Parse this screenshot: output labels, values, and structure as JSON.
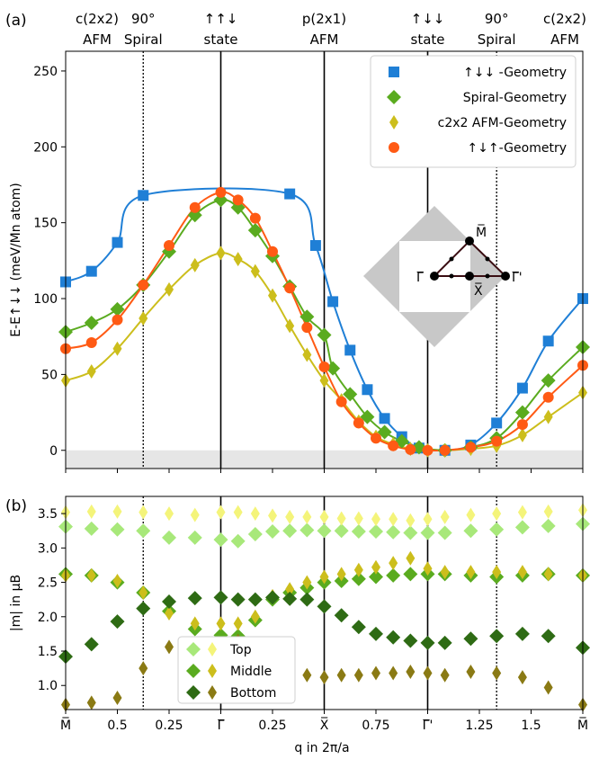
{
  "chart_data": [
    {
      "type": "line",
      "panel_label": "(a)",
      "ylabel": "E-E↑↓↓ (meV/Mn atom)",
      "ylim": [
        -12,
        263
      ],
      "yticks": [
        "0",
        "50",
        "100",
        "150",
        "200",
        "250"
      ],
      "xticks": [
        "M̅",
        "0.5",
        "0.25",
        "Γ̅",
        "0.25",
        "X̅",
        "0.75",
        "Γ̅'",
        "1.25",
        "1.5",
        "M̅"
      ],
      "shaded_band": [
        -12,
        0
      ],
      "top_labels": [
        {
          "line1": "c(2x2)",
          "line2": "AFM"
        },
        {
          "line1": "90°",
          "line2": "Spiral"
        },
        {
          "line1": "↑↑↓",
          "line2": "state"
        },
        {
          "line1": "p(2x1)",
          "line2": "AFM"
        },
        {
          "line1": "↑↓↓",
          "line2": "state"
        },
        {
          "line1": "90°",
          "line2": "Spiral"
        },
        {
          "line1": "c(2x2)",
          "line2": "AFM"
        }
      ],
      "legend_position": "top-right",
      "series": [
        {
          "name": "↑↓↓ -Geometry",
          "marker": "square",
          "color": "#1f7fd6",
          "x": [
            0,
            0.3,
            0.6,
            0.9,
            2.6,
            2.9,
            3.1,
            3.3,
            3.5,
            3.7,
            3.9,
            4.1,
            4.4,
            4.7,
            5.0,
            5.3,
            5.6,
            6.0
          ],
          "y": [
            111,
            118,
            137,
            168,
            169,
            135,
            98,
            66,
            40,
            21,
            9,
            1.5,
            0,
            3.5,
            18,
            41,
            72,
            100
          ]
        },
        {
          "name": "Spiral-Geometry",
          "marker": "diamond",
          "color": "#5aab1f",
          "x": [
            0,
            0.3,
            0.6,
            0.9,
            1.2,
            1.5,
            1.8,
            2.0,
            2.2,
            2.4,
            2.6,
            2.8,
            3.0,
            3.1,
            3.3,
            3.5,
            3.7,
            3.9,
            4.1,
            4.4,
            4.7,
            5.0,
            5.3,
            5.6,
            6.0
          ],
          "y": [
            78,
            84,
            93,
            109,
            131,
            155,
            165,
            160,
            145,
            128,
            108,
            88,
            76,
            54,
            37,
            22,
            12,
            6,
            2,
            0,
            2,
            8,
            25,
            46,
            68
          ]
        },
        {
          "name": "c2x2 AFM-Geometry",
          "marker": "thin-diamond",
          "color": "#ccbe1c",
          "x": [
            0,
            0.3,
            0.6,
            0.9,
            1.2,
            1.5,
            1.8,
            2.0,
            2.2,
            2.4,
            2.6,
            2.8,
            3.0,
            3.2,
            3.4,
            3.6,
            3.8,
            4.0,
            4.2,
            4.4,
            4.7,
            5.0,
            5.3,
            5.6,
            6.0
          ],
          "y": [
            46,
            52,
            67,
            87,
            106,
            122,
            130,
            126,
            118,
            102,
            82,
            63,
            46,
            33,
            19,
            9,
            4,
            1,
            0,
            0,
            1,
            3,
            10,
            22,
            38
          ]
        },
        {
          "name": "↑↓↑-Geometry",
          "marker": "circle",
          "color": "#ff5a14",
          "x": [
            0,
            0.3,
            0.6,
            0.9,
            1.2,
            1.5,
            1.8,
            2.0,
            2.2,
            2.4,
            2.6,
            2.8,
            3.0,
            3.2,
            3.4,
            3.6,
            3.8,
            4.0,
            4.2,
            4.4,
            4.7,
            5.0,
            5.3,
            5.6,
            6.0
          ],
          "y": [
            67,
            71,
            86,
            109,
            135,
            160,
            170,
            165,
            153,
            131,
            107,
            81,
            55,
            32,
            18,
            8,
            3,
            0.5,
            0,
            0,
            2,
            6,
            17,
            35,
            56
          ]
        }
      ]
    },
    {
      "type": "scatter",
      "panel_label": "(b)",
      "ylabel": "|m| in μB",
      "xlabel": "q in 2π/a",
      "ylim": [
        0.65,
        3.75
      ],
      "yticks": [
        "1.0",
        "1.5",
        "2.0",
        "2.5",
        "3.0",
        "3.5"
      ],
      "xticks": [
        "M̅",
        "0.5",
        "0.25",
        "Γ̅",
        "0.25",
        "X̅",
        "0.75",
        "Γ̅'",
        "1.25",
        "1.5",
        "M̅"
      ],
      "legend_position": "bottom-left",
      "legend": [
        "Top",
        "Middle",
        "Bottom"
      ],
      "series": [
        {
          "name": "Top",
          "kind": "AFM",
          "colors": [
            "#a8e87a",
            "#f4f47a"
          ],
          "x": [
            0,
            0.3,
            0.6,
            0.9,
            1.2,
            1.5,
            1.8,
            2.0,
            2.2,
            2.4,
            2.6,
            2.8,
            3.0,
            3.2,
            3.4,
            3.6,
            3.8,
            4.0,
            4.2,
            4.4,
            4.7,
            5.0,
            5.3,
            5.6,
            6.0
          ],
          "y": [
            3.31,
            3.28,
            3.27,
            3.25,
            3.15,
            3.15,
            3.12,
            3.1,
            3.2,
            3.24,
            3.25,
            3.26,
            3.25,
            3.25,
            3.24,
            3.24,
            3.23,
            3.22,
            3.22,
            3.22,
            3.25,
            3.27,
            3.3,
            3.32,
            3.35
          ],
          "y2": [
            3.52,
            3.53,
            3.53,
            3.52,
            3.5,
            3.48,
            3.52,
            3.52,
            3.5,
            3.47,
            3.45,
            3.45,
            3.45,
            3.43,
            3.43,
            3.42,
            3.42,
            3.4,
            3.42,
            3.45,
            3.48,
            3.5,
            3.52,
            3.53,
            3.55
          ]
        },
        {
          "name": "Middle",
          "kind": "AFM",
          "colors": [
            "#5aab1f",
            "#ccbe1c"
          ],
          "x": [
            0,
            0.3,
            0.6,
            0.9,
            1.2,
            1.5,
            1.8,
            2.0,
            2.2,
            2.4,
            2.6,
            2.8,
            3.0,
            3.2,
            3.4,
            3.6,
            3.8,
            4.0,
            4.2,
            4.4,
            4.7,
            5.0,
            5.3,
            5.6,
            6.0
          ],
          "y": [
            2.62,
            2.6,
            2.5,
            2.35,
            2.08,
            1.82,
            1.73,
            1.72,
            1.95,
            2.25,
            2.35,
            2.42,
            2.5,
            2.52,
            2.55,
            2.58,
            2.6,
            2.62,
            2.62,
            2.62,
            2.6,
            2.58,
            2.6,
            2.62,
            2.6
          ],
          "y2": [
            2.6,
            2.6,
            2.52,
            2.35,
            2.05,
            1.9,
            1.9,
            1.9,
            2.0,
            2.3,
            2.4,
            2.5,
            2.58,
            2.62,
            2.68,
            2.72,
            2.78,
            2.85,
            2.7,
            2.65,
            2.65,
            2.65,
            2.65,
            2.62,
            2.6
          ]
        },
        {
          "name": "Bottom",
          "kind": "AFM",
          "colors": [
            "#2e6b14",
            "#8a7a14"
          ],
          "x": [
            0,
            0.3,
            0.6,
            0.9,
            1.2,
            1.5,
            1.8,
            2.0,
            2.2,
            2.4,
            2.6,
            2.8,
            3.0,
            3.2,
            3.4,
            3.6,
            3.8,
            4.0,
            4.2,
            4.4,
            4.7,
            5.0,
            5.3,
            5.6,
            6.0
          ],
          "y": [
            1.42,
            1.6,
            1.93,
            2.12,
            2.22,
            2.27,
            2.28,
            2.25,
            2.25,
            2.28,
            2.26,
            2.25,
            2.15,
            2.02,
            1.85,
            1.75,
            1.7,
            1.65,
            1.62,
            1.62,
            1.68,
            1.72,
            1.75,
            1.72,
            1.55
          ],
          "y2": [
            0.72,
            0.75,
            0.82,
            1.25,
            1.56,
            1.55,
            1.6,
            1.65,
            1.55,
            1.35,
            1.22,
            1.15,
            1.12,
            1.15,
            1.15,
            1.18,
            1.18,
            1.2,
            1.18,
            1.15,
            1.2,
            1.18,
            1.12,
            0.97,
            0.72
          ]
        }
      ]
    }
  ],
  "inset": {
    "labels": [
      "M̅",
      "Γ̅",
      "X̅",
      "Γ̅'"
    ]
  },
  "colors": {
    "blue": "#1f7fd6",
    "green": "#5aab1f",
    "yellow": "#ccbe1c",
    "orange": "#ff5a14"
  }
}
